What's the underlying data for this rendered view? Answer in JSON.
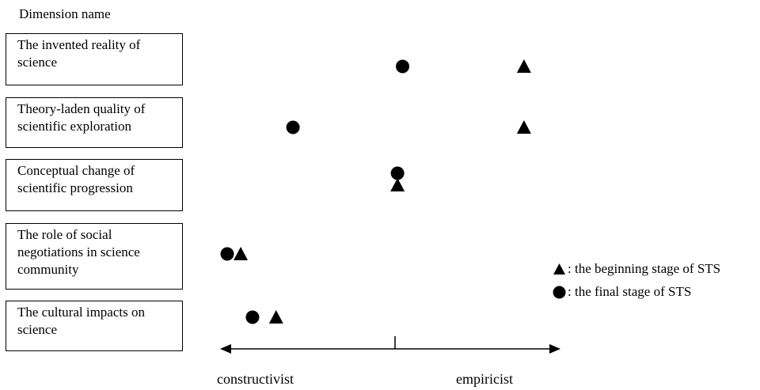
{
  "chart_data": {
    "type": "scatter",
    "header": "Dimension name",
    "dimensions": [
      "The invented reality of science",
      "Theory-laden quality of scientific exploration",
      "Conceptual change of scientific progression",
      "The role of social negotiations in science community",
      "The cultural impacts on science"
    ],
    "axis": {
      "left_label": "constructivist",
      "right_label": "empiricist",
      "range": [
        -1,
        1
      ],
      "midpoint": 0
    },
    "series": [
      {
        "name": "the beginning stage of STS",
        "marker": "triangle",
        "values": [
          0.76,
          0.76,
          0.01,
          -0.92,
          -0.71
        ]
      },
      {
        "name": "the final stage of STS",
        "marker": "circle",
        "values": [
          0.04,
          -0.61,
          0.01,
          -1.0,
          -0.85
        ]
      }
    ],
    "legend": [
      {
        "label": ": the beginning stage of STS",
        "marker": "triangle"
      },
      {
        "label": ": the final stage of STS",
        "marker": "circle"
      }
    ]
  }
}
